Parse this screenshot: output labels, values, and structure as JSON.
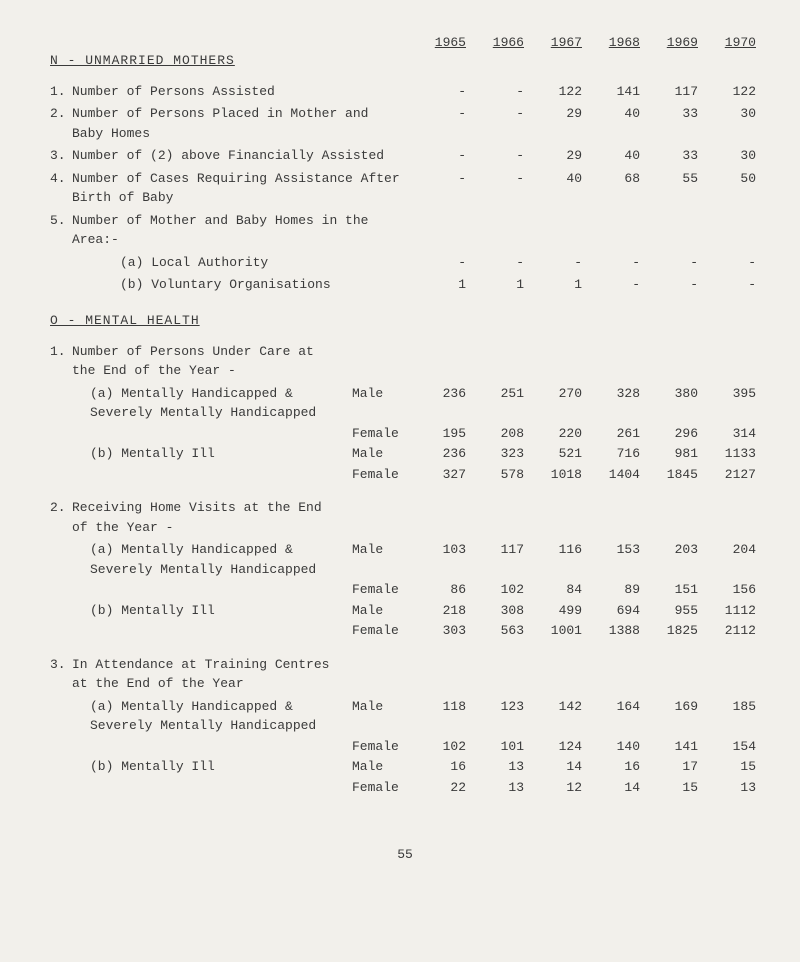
{
  "sectionN": {
    "title": "N - UNMARRIED MOTHERS",
    "years": [
      "1965",
      "1966",
      "1967",
      "1968",
      "1969",
      "1970"
    ],
    "rows": [
      {
        "n": "1.",
        "label": "Number of Persons Assisted",
        "vals": [
          "-",
          "-",
          "122",
          "141",
          "117",
          "122"
        ]
      },
      {
        "n": "2.",
        "label": "Number of Persons Placed in Mother and Baby Homes",
        "vals": [
          "-",
          "-",
          "29",
          "40",
          "33",
          "30"
        ]
      },
      {
        "n": "3.",
        "label": "Number of (2) above Financially Assisted",
        "vals": [
          "-",
          "-",
          "29",
          "40",
          "33",
          "30"
        ]
      },
      {
        "n": "4.",
        "label": "Number of Cases Requiring Assistance After Birth of Baby",
        "vals": [
          "-",
          "-",
          "40",
          "68",
          "55",
          "50"
        ]
      },
      {
        "n": "5.",
        "label": "Number of Mother and Baby Homes in the Area:-",
        "vals": [
          "",
          "",
          "",
          "",
          "",
          ""
        ]
      }
    ],
    "subA": {
      "label": "(a)  Local Authority",
      "vals": [
        "-",
        "-",
        "-",
        "-",
        "-",
        "-"
      ]
    },
    "subB": {
      "label": "(b)  Voluntary Organisations",
      "vals": [
        "1",
        "1",
        "1",
        "-",
        "-",
        "-"
      ]
    }
  },
  "sectionO": {
    "title": "O - MENTAL HEALTH",
    "groups": [
      {
        "n": "1.",
        "title": "Number of Persons Under Care at the End of the Year -",
        "items": [
          {
            "sub": "(a)",
            "label": "Mentally Handicapped & Severely Mentally Handicapped",
            "m": [
              "236",
              "251",
              "270",
              "328",
              "380",
              "395"
            ],
            "f": [
              "195",
              "208",
              "220",
              "261",
              "296",
              "314"
            ]
          },
          {
            "sub": "(b)",
            "label": "Mentally Ill",
            "m": [
              "236",
              "323",
              "521",
              "716",
              "981",
              "1133"
            ],
            "f": [
              "327",
              "578",
              "1018",
              "1404",
              "1845",
              "2127"
            ]
          }
        ]
      },
      {
        "n": "2.",
        "title": "Receiving Home Visits at the End of the Year -",
        "items": [
          {
            "sub": "(a)",
            "label": "Mentally Handicapped & Severely Mentally Handicapped",
            "m": [
              "103",
              "117",
              "116",
              "153",
              "203",
              "204"
            ],
            "f": [
              "86",
              "102",
              "84",
              "89",
              "151",
              "156"
            ]
          },
          {
            "sub": "(b)",
            "label": "Mentally Ill",
            "m": [
              "218",
              "308",
              "499",
              "694",
              "955",
              "1112"
            ],
            "f": [
              "303",
              "563",
              "1001",
              "1388",
              "1825",
              "2112"
            ]
          }
        ]
      },
      {
        "n": "3.",
        "title": "In Attendance at Training Centres at the End of the Year",
        "items": [
          {
            "sub": "(a)",
            "label": "Mentally Handicapped & Severely Mentally Handicapped",
            "m": [
              "118",
              "123",
              "142",
              "164",
              "169",
              "185"
            ],
            "f": [
              "102",
              "101",
              "124",
              "140",
              "141",
              "154"
            ]
          },
          {
            "sub": "(b)",
            "label": "Mentally Ill",
            "m": [
              "16",
              "13",
              "14",
              "16",
              "17",
              "15"
            ],
            "f": [
              "22",
              "13",
              "12",
              "14",
              "15",
              "13"
            ]
          }
        ]
      }
    ]
  },
  "sexLabels": {
    "m": "Male",
    "f": "Female"
  },
  "pageNum": "55"
}
